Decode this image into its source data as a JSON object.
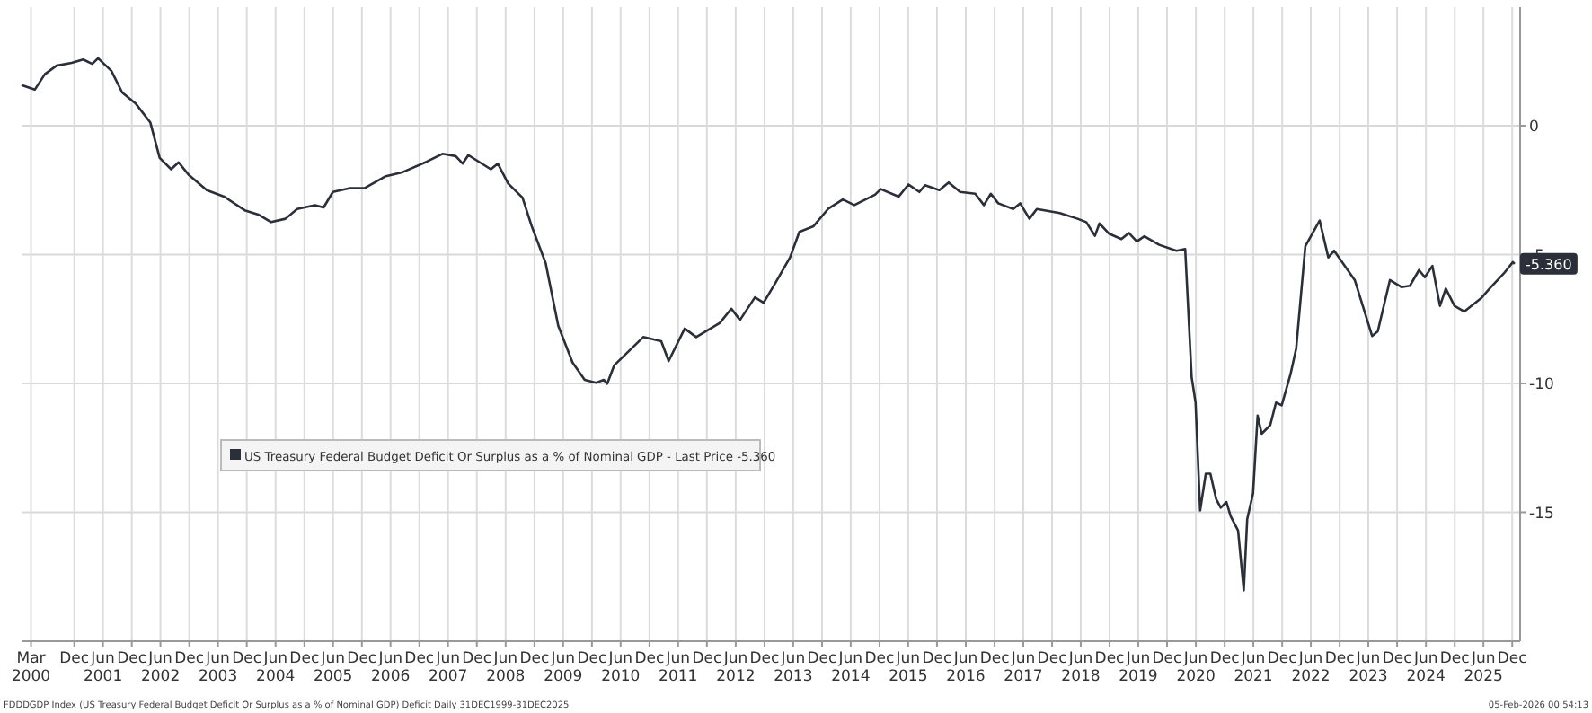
{
  "chart_data": {
    "type": "line",
    "xlim": [
      "2000-01-01",
      "2026-01-20"
    ],
    "ylim": [
      -20,
      4.6
    ],
    "yticks": [
      0,
      -5,
      -10,
      -15
    ],
    "xticks": [
      {
        "value": "2000-03-01",
        "label": "Mar\n2000"
      },
      {
        "value": "2000-12-01",
        "label": "Dec"
      },
      {
        "value": "2001-06-01",
        "label": "Jun\n2001"
      },
      {
        "value": "2001-12-01",
        "label": "Dec"
      },
      {
        "value": "2002-06-01",
        "label": "Jun\n2002"
      },
      {
        "value": "2002-12-01",
        "label": "Dec"
      },
      {
        "value": "2003-06-01",
        "label": "Jun\n2003"
      },
      {
        "value": "2003-12-01",
        "label": "Dec"
      },
      {
        "value": "2004-06-01",
        "label": "Jun\n2004"
      },
      {
        "value": "2004-12-01",
        "label": "Dec"
      },
      {
        "value": "2005-06-01",
        "label": "Jun\n2005"
      },
      {
        "value": "2005-12-01",
        "label": "Dec"
      },
      {
        "value": "2006-06-01",
        "label": "Jun\n2006"
      },
      {
        "value": "2006-12-01",
        "label": "Dec"
      },
      {
        "value": "2007-06-01",
        "label": "Jun\n2007"
      },
      {
        "value": "2007-12-01",
        "label": "Dec"
      },
      {
        "value": "2008-06-01",
        "label": "Jun\n2008"
      },
      {
        "value": "2008-12-01",
        "label": "Dec"
      },
      {
        "value": "2009-06-01",
        "label": "Jun\n2009"
      },
      {
        "value": "2009-12-01",
        "label": "Dec"
      },
      {
        "value": "2010-06-01",
        "label": "Jun\n2010"
      },
      {
        "value": "2010-12-01",
        "label": "Dec"
      },
      {
        "value": "2011-06-01",
        "label": "Jun\n2011"
      },
      {
        "value": "2011-12-01",
        "label": "Dec"
      },
      {
        "value": "2012-06-01",
        "label": "Jun\n2012"
      },
      {
        "value": "2012-12-01",
        "label": "Dec"
      },
      {
        "value": "2013-06-01",
        "label": "Jun\n2013"
      },
      {
        "value": "2013-12-01",
        "label": "Dec"
      },
      {
        "value": "2014-06-01",
        "label": "Jun\n2014"
      },
      {
        "value": "2014-12-01",
        "label": "Dec"
      },
      {
        "value": "2015-06-01",
        "label": "Jun\n2015"
      },
      {
        "value": "2015-12-01",
        "label": "Dec"
      },
      {
        "value": "2016-06-01",
        "label": "Jun\n2016"
      },
      {
        "value": "2016-12-01",
        "label": "Dec"
      },
      {
        "value": "2017-06-01",
        "label": "Jun\n2017"
      },
      {
        "value": "2017-12-01",
        "label": "Dec"
      },
      {
        "value": "2018-06-01",
        "label": "Jun\n2018"
      },
      {
        "value": "2018-12-01",
        "label": "Dec"
      },
      {
        "value": "2019-06-01",
        "label": "Jun\n2019"
      },
      {
        "value": "2019-12-01",
        "label": "Dec"
      },
      {
        "value": "2020-06-01",
        "label": "Jun\n2020"
      },
      {
        "value": "2020-12-01",
        "label": "Dec"
      },
      {
        "value": "2021-06-01",
        "label": "Jun\n2021"
      },
      {
        "value": "2021-12-01",
        "label": "Dec"
      },
      {
        "value": "2022-06-01",
        "label": "Jun\n2022"
      },
      {
        "value": "2022-12-01",
        "label": "Dec"
      },
      {
        "value": "2023-06-01",
        "label": "Jun\n2023"
      },
      {
        "value": "2023-12-01",
        "label": "Dec"
      },
      {
        "value": "2024-06-01",
        "label": "Jun\n2024"
      },
      {
        "value": "2024-12-01",
        "label": "Dec"
      },
      {
        "value": "2025-06-01",
        "label": "Jun\n2025"
      },
      {
        "value": "2025-12-01",
        "label": "Dec"
      }
    ],
    "grid": true,
    "legend": "left",
    "marker": "none",
    "line_style": "solid",
    "series": [
      {
        "name": "US Treasury Federal Budget Deficit Or Surplus as a % of Nominal GDP - Last Price -5.360",
        "color": "#2b2f3a",
        "x": [
          "2000-01-01",
          "2000-03-25",
          "2000-05-28",
          "2000-08-10",
          "2000-11-14",
          "2001-01-26",
          "2001-03-25",
          "2001-05-01",
          "2001-07-24",
          "2001-10-01",
          "2001-12-27",
          "2002-03-29",
          "2002-05-27",
          "2002-08-08",
          "2002-09-24",
          "2002-11-28",
          "2003-03-22",
          "2003-07-10",
          "2003-11-18",
          "2004-02-17",
          "2004-05-04",
          "2004-08-03",
          "2004-10-16",
          "2005-02-06",
          "2005-04-02",
          "2005-05-31",
          "2005-09-17",
          "2005-12-20",
          "2006-04-27",
          "2006-08-18",
          "2007-01-15",
          "2007-04-27",
          "2007-07-20",
          "2007-09-02",
          "2007-10-08",
          "2008-02-28",
          "2008-04-12",
          "2008-06-17",
          "2008-09-16",
          "2008-11-13",
          "2009-02-10",
          "2009-05-01",
          "2009-07-31",
          "2009-10-16",
          "2009-12-28",
          "2010-02-14",
          "2010-03-08",
          "2010-04-21",
          "2010-10-23",
          "2011-02-14",
          "2011-04-02",
          "2011-07-13",
          "2011-09-24",
          "2012-02-21",
          "2012-05-04",
          "2012-06-28",
          "2012-10-01",
          "2012-11-25",
          "2013-02-07",
          "2013-05-12",
          "2013-07-10",
          "2013-10-08",
          "2014-01-08",
          "2014-04-12",
          "2014-06-24",
          "2014-11-02",
          "2014-12-09",
          "2015-04-02",
          "2015-06-03",
          "2015-08-11",
          "2015-09-16",
          "2015-12-16",
          "2016-02-13",
          "2016-04-26",
          "2016-07-31",
          "2016-09-24",
          "2016-11-07",
          "2016-12-24",
          "2017-03-29",
          "2017-05-12",
          "2017-07-10",
          "2017-08-26",
          "2018-01-19",
          "2018-05-12",
          "2018-07-06",
          "2018-08-30",
          "2018-09-28",
          "2018-11-28",
          "2019-02-14",
          "2019-04-02",
          "2019-05-23",
          "2019-07-10",
          "2019-10-12",
          "2020-01-30",
          "2020-03-25",
          "2020-05-05",
          "2020-05-30",
          "2020-06-28",
          "2020-08-03",
          "2020-09-01",
          "2020-10-08",
          "2020-11-06",
          "2020-12-12",
          "2021-01-08",
          "2021-02-24",
          "2021-04-01",
          "2021-04-23",
          "2021-05-30",
          "2021-06-28",
          "2021-07-24",
          "2021-09-16",
          "2021-10-23",
          "2021-11-28",
          "2022-01-23",
          "2022-02-28",
          "2022-04-27",
          "2022-07-27",
          "2022-09-20",
          "2022-10-27",
          "2023-03-07",
          "2023-06-25",
          "2023-07-31",
          "2023-10-16",
          "2023-12-28",
          "2024-02-20",
          "2024-04-18",
          "2024-05-25",
          "2024-07-12",
          "2024-08-29",
          "2024-10-05",
          "2024-11-29",
          "2025-01-30",
          "2025-05-16",
          "2025-07-10",
          "2025-10-09",
          "2025-12-05",
          "2025-12-16"
        ],
        "values": [
          1.58,
          1.4,
          2.0,
          2.33,
          2.44,
          2.57,
          2.4,
          2.62,
          2.13,
          1.29,
          0.85,
          0.12,
          -1.25,
          -1.69,
          -1.42,
          -1.91,
          -2.5,
          -2.75,
          -3.28,
          -3.46,
          -3.74,
          -3.61,
          -3.23,
          -3.08,
          -3.17,
          -2.57,
          -2.42,
          -2.42,
          -1.97,
          -1.8,
          -1.4,
          -1.09,
          -1.18,
          -1.47,
          -1.14,
          -1.69,
          -1.47,
          -2.24,
          -2.79,
          -3.89,
          -5.33,
          -7.76,
          -9.19,
          -9.86,
          -9.97,
          -9.86,
          -10.01,
          -9.3,
          -8.2,
          -8.36,
          -9.13,
          -7.87,
          -8.2,
          -7.65,
          -7.1,
          -7.54,
          -6.66,
          -6.87,
          -6.11,
          -5.11,
          -4.12,
          -3.9,
          -3.23,
          -2.86,
          -3.08,
          -2.68,
          -2.46,
          -2.75,
          -2.28,
          -2.57,
          -2.31,
          -2.5,
          -2.2,
          -2.57,
          -2.64,
          -3.08,
          -2.64,
          -3.01,
          -3.23,
          -3.01,
          -3.61,
          -3.23,
          -3.39,
          -3.61,
          -3.74,
          -4.27,
          -3.79,
          -4.19,
          -4.4,
          -4.16,
          -4.49,
          -4.29,
          -4.62,
          -4.85,
          -4.78,
          -9.75,
          -10.74,
          -14.93,
          -13.5,
          -13.5,
          -14.49,
          -14.82,
          -14.6,
          -15.15,
          -15.71,
          -18.03,
          -15.26,
          -14.27,
          -11.25,
          -11.95,
          -11.62,
          -10.74,
          -10.85,
          -9.64,
          -8.64,
          -4.67,
          -3.68,
          -5.11,
          -4.85,
          -5.99,
          -8.16,
          -7.98,
          -5.99,
          -6.26,
          -6.21,
          -5.6,
          -5.88,
          -5.44,
          -6.99,
          -6.32,
          -6.99,
          -7.21,
          -6.7,
          -6.32,
          -5.73,
          -5.29,
          -5.36
        ]
      }
    ],
    "annotations": [
      {
        "text": "-5.360",
        "x": "2025-12-16",
        "y": -5.36
      },
      "FDDDGDP Index (US Treasury Federal Budget Deficit Or Surplus as a % of Nominal GDP) Deficit Daily 31DEC1999-31DEC2025",
      "05-Feb-2026 00:54:13"
    ]
  }
}
